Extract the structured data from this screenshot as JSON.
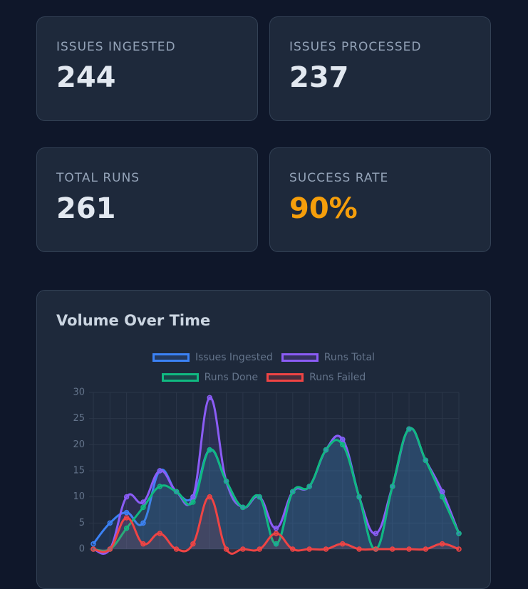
{
  "cards": [
    {
      "label": "ISSUES INGESTED",
      "value": "244"
    },
    {
      "label": "ISSUES PROCESSED",
      "value": "237"
    },
    {
      "label": "TOTAL RUNS",
      "value": "261"
    },
    {
      "label": "SUCCESS RATE",
      "value": "90%",
      "color": "#f59e0b"
    }
  ],
  "chart_data": {
    "type": "line",
    "title": "Volume Over Time",
    "categories": [
      null,
      null,
      null,
      null,
      null,
      null,
      null,
      null,
      null,
      null,
      null,
      null,
      null,
      null,
      null,
      null,
      null,
      null,
      null,
      null,
      null,
      null,
      null
    ],
    "series": [
      {
        "name": "Issues Ingested",
        "color": "#3b82f6",
        "values": [
          1,
          5,
          7,
          5,
          15,
          11,
          10,
          19,
          13,
          8,
          10,
          1,
          11,
          12,
          19,
          21,
          10,
          0,
          12,
          23,
          17,
          11,
          3
        ]
      },
      {
        "name": "Runs Total",
        "color": "#8b5cf6",
        "values": [
          0,
          0,
          10,
          9,
          15,
          11,
          10,
          29,
          13,
          8,
          10,
          4,
          11,
          12,
          19,
          21,
          10,
          3,
          12,
          23,
          17,
          11,
          3
        ]
      },
      {
        "name": "Runs Done",
        "color": "#10b981",
        "values": [
          0,
          0,
          4,
          8,
          12,
          11,
          9,
          19,
          13,
          8,
          10,
          1,
          11,
          12,
          19,
          20,
          10,
          0,
          12,
          23,
          17,
          10,
          3
        ]
      },
      {
        "name": "Runs Failed",
        "color": "#ef4444",
        "values": [
          0,
          0,
          6,
          1,
          3,
          0,
          1,
          10,
          0,
          0,
          0,
          3,
          0,
          0,
          0,
          1,
          0,
          0,
          0,
          0,
          0,
          1,
          0
        ]
      }
    ],
    "ylim": [
      0,
      30
    ],
    "yticks": [
      0,
      5,
      10,
      15,
      20,
      25,
      30
    ],
    "grid": true,
    "legend": "top"
  }
}
